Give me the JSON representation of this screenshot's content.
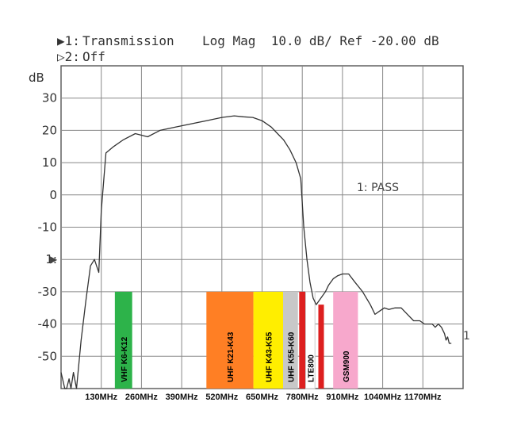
{
  "header": {
    "line1_marker": "▶1:",
    "line1_name": "Transmission",
    "line1_format": "Log Mag  10.0 dB/ Ref -20.00 dB",
    "line2_marker": "▷2:",
    "line2_name": "Off"
  },
  "chart_data": {
    "type": "line",
    "title": "",
    "ylabel": "dB",
    "ylim": [
      -60,
      40
    ],
    "xlim": [
      0,
      1300
    ],
    "grid": true,
    "y_ticks": [
      {
        "label": "30",
        "value": 30
      },
      {
        "label": "20",
        "value": 20
      },
      {
        "label": "10",
        "value": 10
      },
      {
        "label": "0",
        "value": 0
      },
      {
        "label": "-10",
        "value": -10
      },
      {
        "label": "1:",
        "value": -20
      },
      {
        "label": "-30",
        "value": -30
      },
      {
        "label": "-40",
        "value": -40
      },
      {
        "label": "-50",
        "value": -50
      }
    ],
    "x_ticks": [
      {
        "label": "130MHz",
        "value": 130
      },
      {
        "label": "260MHz",
        "value": 260
      },
      {
        "label": "390MHz",
        "value": 390
      },
      {
        "label": "520MHz",
        "value": 520
      },
      {
        "label": "650MHz",
        "value": 650
      },
      {
        "label": "780MHz",
        "value": 780
      },
      {
        "label": "910MHz",
        "value": 910
      },
      {
        "label": "1040MHz",
        "value": 1040
      },
      {
        "label": "1170MHz",
        "value": 1170
      }
    ],
    "series": [
      {
        "color": "#333333",
        "x": [
          0,
          12,
          18,
          26,
          32,
          40,
          50,
          65,
          80,
          95,
          108,
          115,
          122,
          130,
          145,
          170,
          200,
          240,
          280,
          320,
          370,
          420,
          470,
          520,
          560,
          590,
          620,
          650,
          680,
          700,
          720,
          740,
          760,
          775,
          785,
          795,
          805,
          815,
          825,
          840,
          855,
          865,
          880,
          895,
          910,
          930,
          950,
          975,
          1000,
          1015,
          1030,
          1045,
          1060,
          1080,
          1100,
          1120,
          1140,
          1160,
          1175,
          1190,
          1200,
          1210,
          1220,
          1230,
          1240,
          1245,
          1250,
          1255,
          1262
        ],
        "y": [
          -55,
          -60,
          -60,
          -57,
          -60,
          -55,
          -60,
          -45,
          -33,
          -22,
          -20,
          -22,
          -24,
          -5,
          13,
          15,
          17,
          19,
          18,
          20,
          21,
          22,
          23,
          24,
          24.5,
          24.2,
          24,
          23,
          21,
          19,
          17,
          14,
          10,
          5,
          -10,
          -20,
          -27,
          -32,
          -34,
          -32,
          -30,
          -28,
          -26,
          -25,
          -24.5,
          -24.5,
          -27,
          -30,
          -34,
          -37,
          -36,
          -35,
          -35.5,
          -35,
          -35,
          -37,
          -39,
          -39,
          -40,
          -40,
          -40,
          -41,
          -40,
          -41,
          -43,
          -45,
          -44,
          -46,
          -46
        ]
      }
    ],
    "bands": [
      {
        "label": "VHF K6-K12",
        "start": 174,
        "end": 230,
        "color": "#2db34a"
      },
      {
        "label": "UHF K21-K43",
        "start": 470,
        "end": 622,
        "color": "#ff7f24"
      },
      {
        "label": "UHF K43-K55",
        "start": 622,
        "end": 718,
        "color": "#ffee00"
      },
      {
        "label": "UHF K55-K60",
        "start": 718,
        "end": 766,
        "color": "#c8c8c8"
      },
      {
        "label": "",
        "start": 770,
        "end": 790,
        "color": "#dd1f1f"
      },
      {
        "label": "LTE800",
        "start": 791,
        "end": 821,
        "color": "#ffffff"
      },
      {
        "label": "",
        "start": 832,
        "end": 850,
        "color": "#dd1f1f"
      },
      {
        "label": "GSM900",
        "start": 880,
        "end": 960,
        "color": "#f7a8cc"
      }
    ],
    "annotations": {
      "pass": "1: PASS",
      "trace_label": "1",
      "ref_marker": "▶"
    }
  }
}
